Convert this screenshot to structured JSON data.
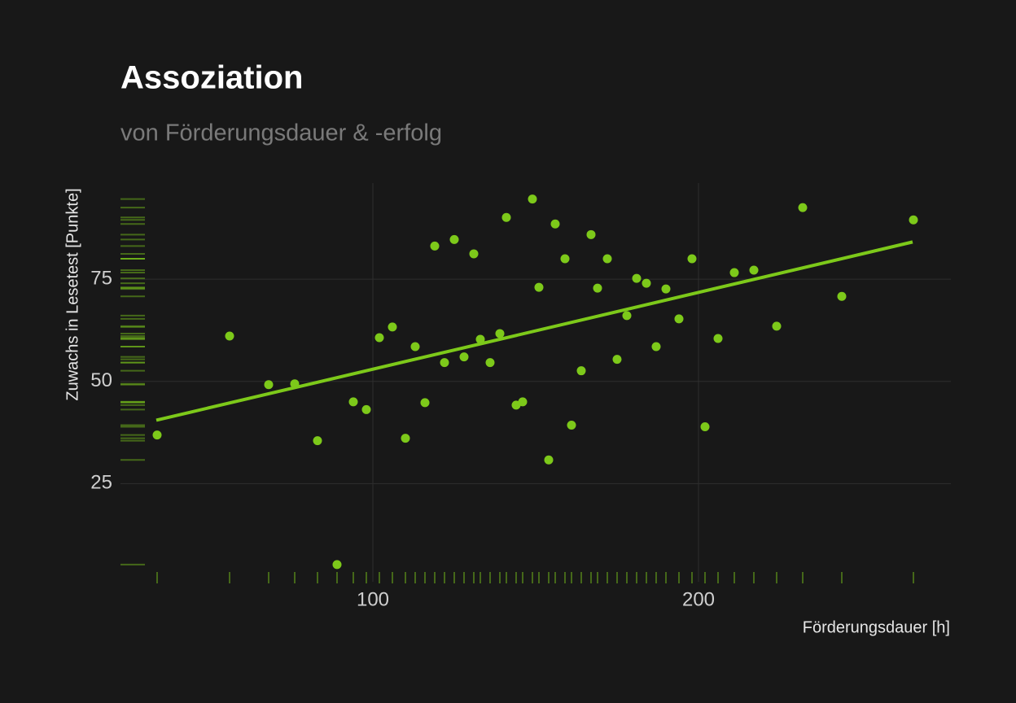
{
  "chart_data": {
    "type": "scatter",
    "title": "Assoziation",
    "subtitle": "von Förderungsdauer & -erfolg",
    "x_label": "Förderungsdauer [h]",
    "y_label": "Zuwachs in Lesetest [Punkte]",
    "color": "#7dc91a",
    "background": "#181818",
    "grid": true,
    "rug": true,
    "xlim": [
      22.5,
      277.5
    ],
    "ylim": [
      1,
      98.5
    ],
    "xticks": [
      100,
      200
    ],
    "yticks": [
      25,
      50,
      75
    ],
    "x": [
      33.75,
      56,
      68,
      76,
      83,
      89,
      94,
      98,
      102,
      106,
      110,
      113,
      116,
      119,
      122,
      125,
      128,
      131,
      133,
      136,
      139,
      141,
      144,
      146,
      149,
      151,
      154,
      156,
      159,
      161,
      164,
      167,
      169,
      172,
      175,
      178,
      181,
      184,
      187,
      190,
      194,
      198,
      202,
      206,
      211,
      217,
      224,
      232,
      244,
      266
    ],
    "values": [
      36.9,
      61.1,
      49.2,
      49.4,
      35.5,
      5.2,
      45.0,
      43.1,
      60.7,
      63.3,
      36.1,
      58.5,
      44.8,
      83.1,
      54.6,
      84.7,
      56.0,
      81.2,
      60.3,
      54.6,
      61.7,
      90.1,
      44.2,
      45.0,
      94.6,
      73.0,
      30.8,
      88.5,
      80.0,
      39.3,
      52.6,
      85.9,
      72.8,
      80.0,
      55.4,
      66.1,
      75.2,
      74.0,
      58.5,
      72.6,
      65.3,
      80.0,
      38.9,
      60.5,
      76.6,
      77.2,
      63.5,
      92.5,
      70.8,
      89.5
    ],
    "trend": {
      "x": [
        33.5,
        265.75
      ],
      "values": [
        40.5,
        84.1
      ]
    }
  }
}
